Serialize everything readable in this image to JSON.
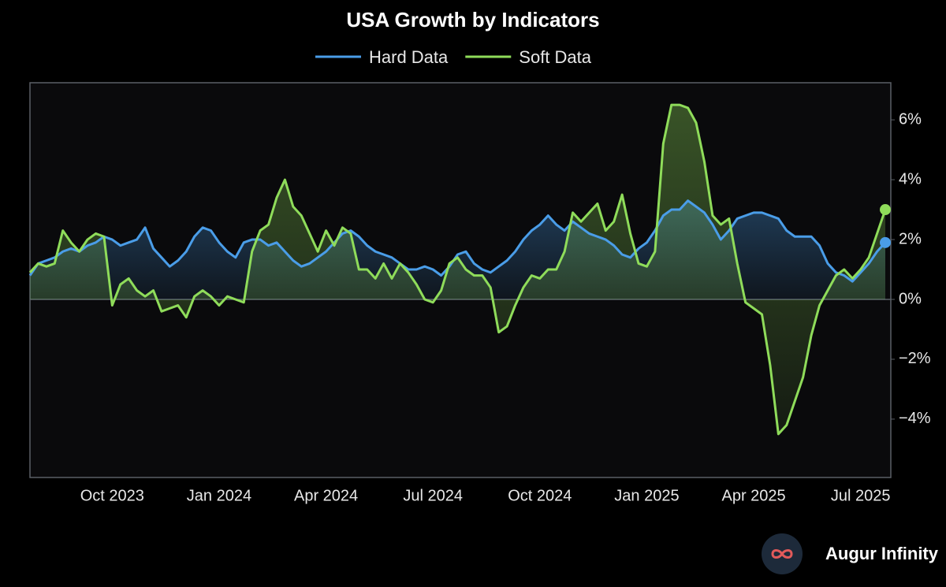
{
  "chart_data": {
    "type": "line",
    "title": "USA Growth by Indicators",
    "brand": "Augur Infinity",
    "categories": [
      null,
      null,
      null,
      null,
      null,
      null,
      null,
      null,
      null,
      null,
      "Oct 2023",
      null,
      null,
      null,
      null,
      null,
      null,
      null,
      null,
      null,
      null,
      null,
      null,
      "Jan 2024",
      null,
      null,
      null,
      null,
      null,
      null,
      null,
      null,
      null,
      null,
      null,
      null,
      "Apr 2024",
      null,
      null,
      null,
      null,
      null,
      null,
      null,
      null,
      null,
      null,
      null,
      null,
      "Jul 2024",
      null,
      null,
      null,
      null,
      null,
      null,
      null,
      null,
      null,
      null,
      null,
      null,
      "Oct 2024",
      null,
      null,
      null,
      null,
      null,
      null,
      null,
      null,
      null,
      null,
      null,
      null,
      "Jan 2025",
      null,
      null,
      null,
      null,
      null,
      null,
      null,
      null,
      null,
      null,
      null,
      null,
      "Apr 2025",
      null,
      null,
      null,
      null,
      null,
      null,
      null,
      null,
      null,
      null,
      null,
      null,
      "Jul 2025",
      null,
      null,
      null
    ],
    "series": [
      {
        "name": "Hard Data",
        "color": "#4a9de8",
        "values": [
          0.8,
          1.2,
          1.3,
          1.4,
          1.6,
          1.7,
          1.6,
          1.8,
          1.9,
          2.1,
          2.0,
          1.8,
          1.9,
          2.0,
          2.4,
          1.7,
          1.4,
          1.1,
          1.3,
          1.6,
          2.1,
          2.4,
          2.3,
          1.9,
          1.6,
          1.4,
          1.9,
          2.0,
          2.0,
          1.8,
          1.9,
          1.6,
          1.3,
          1.1,
          1.2,
          1.4,
          1.6,
          1.9,
          2.2,
          2.3,
          2.1,
          1.8,
          1.6,
          1.5,
          1.4,
          1.2,
          1.0,
          1.0,
          1.1,
          1.0,
          0.8,
          1.1,
          1.5,
          1.6,
          1.2,
          1.0,
          0.9,
          1.1,
          1.3,
          1.6,
          2.0,
          2.3,
          2.5,
          2.8,
          2.5,
          2.3,
          2.6,
          2.4,
          2.2,
          2.1,
          2.0,
          1.8,
          1.5,
          1.4,
          1.7,
          1.9,
          2.3,
          2.8,
          3.0,
          3.0,
          3.3,
          3.1,
          2.9,
          2.5,
          2.0,
          2.3,
          2.7,
          2.8,
          2.9,
          2.9,
          2.8,
          2.7,
          2.3,
          2.1,
          2.1,
          2.1,
          1.8,
          1.2,
          0.9,
          0.8,
          0.6,
          0.9,
          1.2,
          1.6,
          1.9
        ]
      },
      {
        "name": "Soft Data",
        "color": "#8fdc5a",
        "values": [
          0.9,
          1.2,
          1.1,
          1.2,
          2.3,
          1.9,
          1.6,
          2.0,
          2.2,
          2.1,
          -0.2,
          0.5,
          0.7,
          0.3,
          0.1,
          0.3,
          -0.4,
          -0.3,
          -0.2,
          -0.6,
          0.1,
          0.3,
          0.1,
          -0.2,
          0.1,
          0.0,
          -0.1,
          1.6,
          2.3,
          2.5,
          3.4,
          4.0,
          3.1,
          2.8,
          2.2,
          1.6,
          2.3,
          1.8,
          2.4,
          2.2,
          1.0,
          1.0,
          0.7,
          1.2,
          0.7,
          1.2,
          0.9,
          0.5,
          0.0,
          -0.1,
          0.3,
          1.2,
          1.4,
          1.0,
          0.8,
          0.8,
          0.4,
          -1.1,
          -0.9,
          -0.2,
          0.4,
          0.8,
          0.7,
          1.0,
          1.0,
          1.6,
          2.9,
          2.6,
          2.9,
          3.2,
          2.3,
          2.6,
          3.5,
          2.2,
          1.2,
          1.1,
          1.6,
          5.2,
          6.5,
          6.5,
          6.4,
          5.9,
          4.6,
          2.8,
          2.5,
          2.7,
          1.2,
          -0.1,
          -0.3,
          -0.5,
          -2.2,
          -4.5,
          -4.2,
          -3.4,
          -2.6,
          -1.2,
          -0.2,
          0.3,
          0.8,
          1.0,
          0.7,
          1.0,
          1.4,
          2.2,
          3.0
        ]
      }
    ],
    "ylim": [
      -5.95,
      7.24
    ],
    "yticks": [
      {
        "value": -4,
        "label": "−4%"
      },
      {
        "value": -2,
        "label": "−2%"
      },
      {
        "value": 0,
        "label": "0%"
      },
      {
        "value": 2,
        "label": "2%"
      },
      {
        "value": 4,
        "label": "4%"
      },
      {
        "value": 6,
        "label": "6%"
      }
    ],
    "y_axis_side": "right",
    "grid": false
  }
}
